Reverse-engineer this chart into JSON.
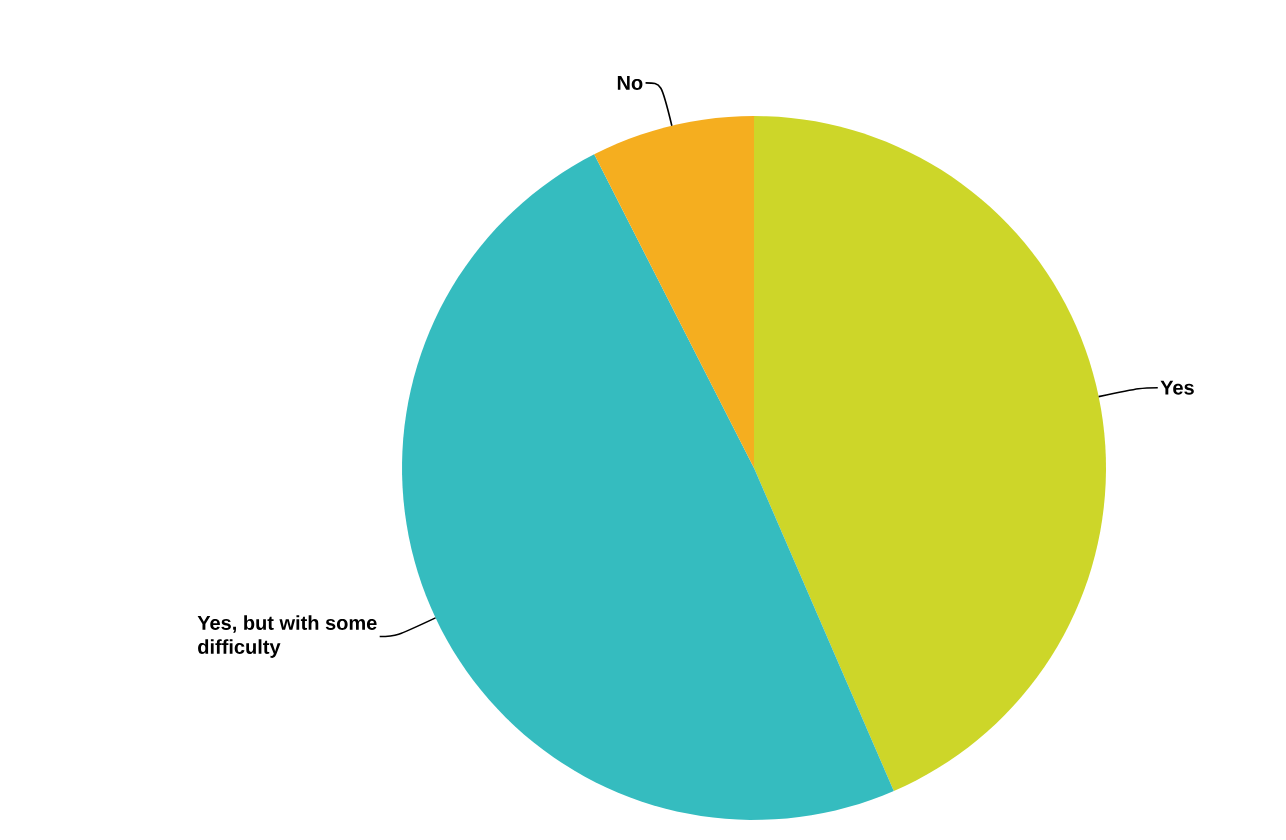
{
  "chart_data": {
    "type": "pie",
    "categories": [
      "Yes",
      "Yes, but with some difficulty",
      "No"
    ],
    "values": [
      43.5,
      49,
      7.5
    ],
    "colors": [
      "#cdd629",
      "#35bcbf",
      "#f5ae1f"
    ]
  }
}
